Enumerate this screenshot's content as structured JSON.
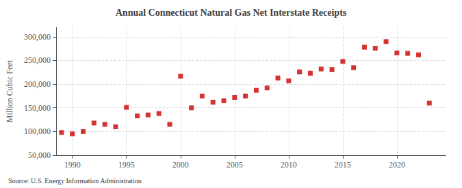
{
  "chart_data": {
    "type": "scatter",
    "title": "Annual Connecticut Natural Gas Net Interstate Receipts",
    "ylabel": "Million Cubic Feet",
    "source": "Source: U.S. Energy Information Administration",
    "x": [
      1989,
      1990,
      1991,
      1992,
      1993,
      1994,
      1995,
      1996,
      1997,
      1998,
      1999,
      2000,
      2001,
      2002,
      2003,
      2004,
      2005,
      2006,
      2007,
      2008,
      2009,
      2010,
      2011,
      2012,
      2013,
      2014,
      2015,
      2016,
      2017,
      2018,
      2019,
      2020,
      2021,
      2022,
      2023
    ],
    "values": [
      98000,
      95000,
      100000,
      118000,
      115000,
      110000,
      151000,
      133000,
      135000,
      138000,
      115000,
      217000,
      150000,
      175000,
      162000,
      165000,
      172000,
      175000,
      187000,
      192000,
      213000,
      207000,
      226000,
      223000,
      232000,
      231000,
      248000,
      235000,
      278000,
      276000,
      290000,
      266000,
      265000,
      262000,
      160000
    ],
    "color": "#cc0000",
    "marker": "square",
    "xlim": [
      1988.5,
      2024.5
    ],
    "xticks": [
      1990,
      1995,
      2000,
      2005,
      2010,
      2015,
      2020
    ],
    "ylim": [
      50000,
      320000
    ],
    "yticks": [
      {
        "value": 50000,
        "label": "50,000"
      },
      {
        "value": 100000,
        "label": "100,000"
      },
      {
        "value": 150000,
        "label": "150,000"
      },
      {
        "value": 200000,
        "label": "200,000"
      },
      {
        "value": 250000,
        "label": "250,000"
      },
      {
        "value": 300000,
        "label": "300,000"
      }
    ],
    "grid": true
  }
}
